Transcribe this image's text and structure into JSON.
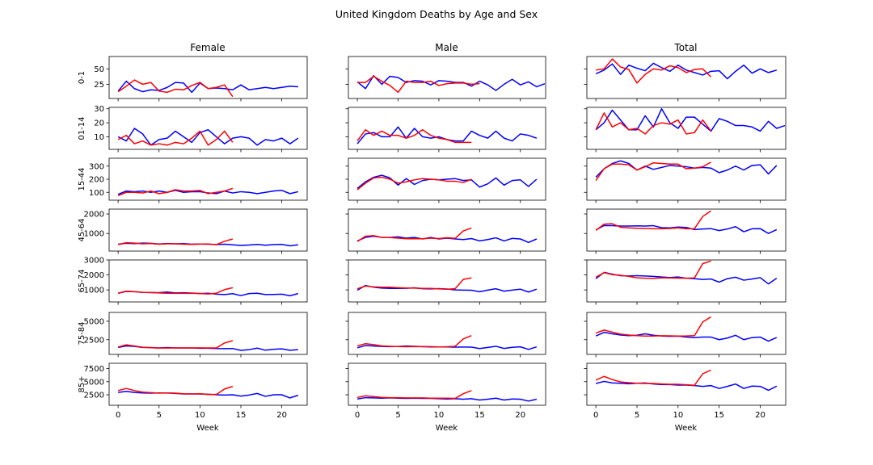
{
  "chart_data": {
    "type": "line",
    "title": "United Kingdom Deaths by Age and Sex",
    "columns": [
      "Female",
      "Male",
      "Total"
    ],
    "rows": [
      "0-1",
      "01-14",
      "15-44",
      "45-64",
      "65-74",
      "75-84",
      "85+"
    ],
    "xlabel": "Week",
    "x_ticks": [
      0,
      5,
      10,
      15,
      20
    ],
    "xlim": [
      -1.1,
      23.1
    ],
    "series_colors": {
      "blue": "#0000ff",
      "red": "#ff0000"
    },
    "row_yaxes": [
      {
        "ylim": [
          2,
          70
        ],
        "ticks": [
          25,
          50
        ]
      },
      {
        "ylim": [
          1,
          31
        ],
        "ticks": [
          10,
          20,
          30
        ]
      },
      {
        "ylim": [
          40,
          360
        ],
        "ticks": [
          100,
          200,
          300
        ]
      },
      {
        "ylim": [
          100,
          2250
        ],
        "ticks": [
          1000,
          2000
        ]
      },
      {
        "ylim": [
          200,
          3000
        ],
        "ticks": [
          1000,
          2000,
          3000
        ]
      },
      {
        "ylim": [
          500,
          6200
        ],
        "ticks": [
          2500,
          5000
        ]
      },
      {
        "ylim": [
          500,
          8500
        ],
        "ticks": [
          2500,
          5000,
          7500
        ]
      }
    ],
    "panels": [
      [
        {
          "blue": [
            14,
            30,
            18,
            13,
            16,
            15,
            20,
            28,
            27,
            12,
            27,
            18,
            19,
            18,
            16,
            24,
            16,
            18,
            20,
            18,
            20,
            22,
            21
          ],
          "red": [
            13,
            22,
            32,
            25,
            28,
            14,
            12,
            17,
            16,
            23,
            28,
            18,
            20,
            24,
            5
          ]
        },
        {
          "blue": [
            29,
            18,
            39,
            25,
            38,
            36,
            28,
            31,
            30,
            24,
            31,
            30,
            28,
            28,
            22,
            30,
            24,
            15,
            25,
            33,
            24,
            29,
            21,
            26
          ],
          "red": [
            28,
            28,
            38,
            30,
            23,
            12,
            30,
            28,
            28,
            30,
            23,
            26,
            27,
            27,
            25,
            26
          ]
        },
        {
          "blue": [
            42,
            48,
            58,
            41,
            56,
            51,
            47,
            59,
            52,
            46,
            56,
            48,
            44,
            40,
            46,
            47,
            34,
            46,
            56,
            43,
            50,
            44,
            48
          ],
          "red": [
            48,
            50,
            66,
            53,
            49,
            27,
            41,
            50,
            48,
            55,
            52,
            44,
            49,
            50,
            37
          ]
        }
      ],
      [
        {
          "blue": [
            10,
            7,
            16,
            12,
            4,
            8,
            9,
            14,
            10,
            6,
            13,
            15,
            10,
            5,
            9,
            10,
            9,
            4,
            8,
            7,
            9,
            5,
            9
          ],
          "red": [
            8,
            11,
            5,
            7,
            4,
            5,
            4,
            6,
            5,
            9,
            14,
            4,
            8,
            14,
            6
          ]
        },
        {
          "blue": [
            5,
            12,
            13,
            10,
            10,
            17,
            9,
            16,
            10,
            9,
            10,
            8,
            7,
            7,
            14,
            11,
            9,
            14,
            9,
            7,
            12,
            11,
            9
          ],
          "red": [
            7,
            15,
            11,
            14,
            11,
            11,
            9,
            11,
            15,
            11,
            9,
            8,
            6,
            6,
            6
          ]
        },
        {
          "blue": [
            15,
            20,
            29,
            22,
            15,
            15,
            25,
            17,
            30,
            20,
            16,
            24,
            24,
            19,
            14,
            23,
            21,
            18,
            18,
            17,
            14,
            21,
            16,
            18
          ],
          "red": [
            15,
            27,
            17,
            20,
            15,
            16,
            12,
            18,
            20,
            19,
            22,
            12,
            13,
            22,
            14
          ]
        }
      ],
      [
        {
          "blue": [
            85,
            110,
            105,
            110,
            100,
            110,
            100,
            115,
            100,
            105,
            105,
            95,
            90,
            110,
            95,
            105,
            100,
            90,
            100,
            110,
            115,
            90,
            105
          ],
          "red": [
            75,
            100,
            100,
            95,
            110,
            90,
            100,
            120,
            110,
            110,
            115,
            90,
            100,
            110,
            130
          ]
        },
        {
          "blue": [
            130,
            180,
            215,
            230,
            210,
            155,
            205,
            160,
            190,
            200,
            195,
            200,
            205,
            190,
            195,
            140,
            165,
            210,
            155,
            190,
            195,
            145,
            200
          ],
          "red": [
            120,
            170,
            210,
            215,
            200,
            170,
            180,
            195,
            205,
            200,
            195,
            185,
            185,
            175,
            200
          ]
        },
        {
          "blue": [
            215,
            280,
            320,
            340,
            320,
            270,
            300,
            275,
            290,
            305,
            300,
            295,
            285,
            290,
            285,
            250,
            270,
            300,
            270,
            305,
            310,
            240,
            305
          ],
          "red": [
            190,
            280,
            315,
            315,
            310,
            270,
            295,
            325,
            320,
            315,
            315,
            280,
            285,
            295,
            330
          ]
        }
      ],
      [
        {
          "blue": [
            450,
            500,
            480,
            510,
            500,
            460,
            490,
            470,
            480,
            450,
            460,
            450,
            430,
            450,
            420,
            390,
            410,
            440,
            400,
            430,
            440,
            370,
            420
          ],
          "red": [
            430,
            530,
            510,
            470,
            490,
            450,
            470,
            470,
            450,
            440,
            460,
            460,
            430,
            600,
            720
          ]
        },
        {
          "blue": [
            620,
            800,
            860,
            800,
            800,
            830,
            760,
            800,
            720,
            800,
            720,
            760,
            720,
            690,
            740,
            620,
            690,
            780,
            620,
            750,
            720,
            540,
            720
          ],
          "red": [
            590,
            860,
            890,
            800,
            790,
            760,
            730,
            730,
            730,
            760,
            740,
            780,
            750,
            1130,
            1280
          ]
        },
        {
          "blue": [
            1180,
            1410,
            1400,
            1380,
            1380,
            1390,
            1380,
            1400,
            1300,
            1290,
            1330,
            1310,
            1200,
            1230,
            1250,
            1150,
            1230,
            1350,
            1090,
            1240,
            1250,
            1000,
            1200
          ],
          "red": [
            1160,
            1480,
            1500,
            1320,
            1290,
            1270,
            1260,
            1240,
            1240,
            1260,
            1290,
            1240,
            1250,
            1870,
            2160
          ]
        }
      ],
      [
        {
          "blue": [
            780,
            900,
            880,
            840,
            820,
            820,
            860,
            800,
            810,
            790,
            760,
            780,
            720,
            690,
            750,
            620,
            760,
            780,
            690,
            700,
            720,
            610,
            760
          ],
          "red": [
            780,
            920,
            890,
            840,
            830,
            800,
            780,
            770,
            770,
            780,
            760,
            730,
            780,
            1020,
            1150
          ]
        },
        {
          "blue": [
            980,
            1300,
            1180,
            1120,
            1100,
            1100,
            1110,
            1140,
            1080,
            1070,
            1090,
            1060,
            1000,
            990,
            980,
            880,
            990,
            1080,
            920,
            990,
            1050,
            860,
            1050
          ],
          "red": [
            1080,
            1260,
            1200,
            1180,
            1180,
            1150,
            1130,
            1120,
            1100,
            1100,
            1070,
            1050,
            1080,
            1700,
            1800
          ]
        },
        {
          "blue": [
            1750,
            2170,
            2050,
            1950,
            1930,
            1950,
            1930,
            1900,
            1860,
            1830,
            1860,
            1780,
            1750,
            1700,
            1730,
            1520,
            1750,
            1850,
            1650,
            1730,
            1820,
            1400,
            1780
          ],
          "red": [
            1850,
            2150,
            2020,
            1980,
            1900,
            1810,
            1780,
            1770,
            1810,
            1800,
            1790,
            1780,
            1800,
            2750,
            2930
          ]
        }
      ],
      [
        {
          "blue": [
            1450,
            1650,
            1580,
            1450,
            1430,
            1380,
            1430,
            1380,
            1380,
            1380,
            1340,
            1330,
            1290,
            1280,
            1300,
            1050,
            1150,
            1350,
            1070,
            1200,
            1250,
            1060,
            1150
          ],
          "red": [
            1500,
            1800,
            1640,
            1470,
            1400,
            1360,
            1360,
            1380,
            1380,
            1380,
            1390,
            1380,
            1370,
            2050,
            2360
          ]
        },
        {
          "blue": [
            1400,
            1700,
            1640,
            1580,
            1560,
            1580,
            1640,
            1600,
            1560,
            1520,
            1520,
            1510,
            1490,
            1500,
            1490,
            1300,
            1450,
            1600,
            1310,
            1460,
            1530,
            1180,
            1520
          ],
          "red": [
            1650,
            1950,
            1830,
            1650,
            1600,
            1570,
            1540,
            1560,
            1560,
            1550,
            1520,
            1540,
            1600,
            2600,
            3050
          ]
        },
        {
          "blue": [
            3000,
            3500,
            3300,
            3130,
            3050,
            3100,
            3300,
            3100,
            3000,
            2950,
            2980,
            2850,
            2780,
            2850,
            2850,
            2500,
            2720,
            3100,
            2500,
            2780,
            2850,
            2300,
            2800
          ],
          "red": [
            3400,
            3800,
            3520,
            3250,
            3130,
            3050,
            3000,
            3000,
            3030,
            3020,
            3000,
            3010,
            3050,
            4900,
            5600
          ]
        }
      ],
      [
        {
          "blue": [
            2950,
            3150,
            2950,
            2850,
            2800,
            2850,
            2850,
            2750,
            2650,
            2650,
            2650,
            2600,
            2500,
            2450,
            2500,
            2250,
            2450,
            2750,
            2200,
            2500,
            2500,
            1900,
            2400
          ],
          "red": [
            3300,
            3700,
            3300,
            3000,
            2900,
            2800,
            2850,
            2800,
            2700,
            2650,
            2700,
            2550,
            2550,
            3600,
            4100
          ]
        },
        {
          "blue": [
            1700,
            1950,
            1900,
            1850,
            1900,
            1850,
            1800,
            1850,
            1800,
            1800,
            1750,
            1700,
            1750,
            1650,
            1750,
            1500,
            1650,
            1850,
            1500,
            1700,
            1650,
            1300,
            1650
          ],
          "red": [
            2000,
            2300,
            2150,
            2000,
            1950,
            1950,
            1900,
            1900,
            1900,
            1850,
            1850,
            1850,
            1800,
            2700,
            3300
          ]
        },
        {
          "blue": [
            4650,
            5050,
            4750,
            4700,
            4600,
            4700,
            4750,
            4550,
            4450,
            4450,
            4350,
            4350,
            4250,
            4100,
            4250,
            3700,
            4100,
            4550,
            3700,
            4150,
            4100,
            3350,
            4150
          ],
          "red": [
            5300,
            6000,
            5400,
            4950,
            4800,
            4700,
            4650,
            4650,
            4550,
            4500,
            4500,
            4400,
            4300,
            6500,
            7200
          ]
        }
      ]
    ]
  }
}
